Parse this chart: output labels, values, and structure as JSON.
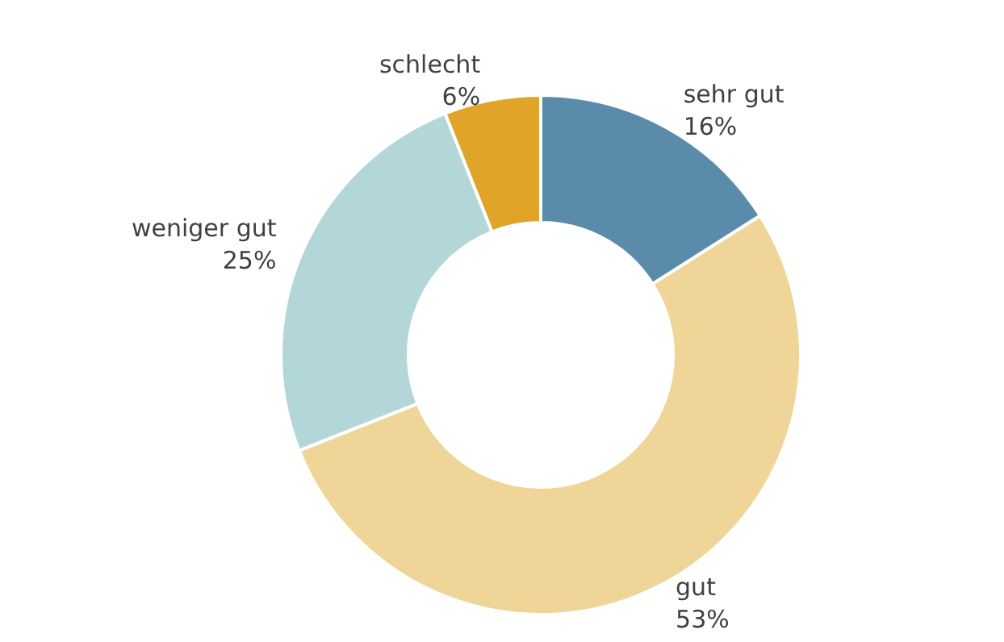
{
  "chart_data": {
    "type": "donut",
    "categories": [
      "sehr gut",
      "gut",
      "weniger gut",
      "schlecht"
    ],
    "values": [
      16,
      53,
      25,
      6
    ],
    "value_labels": [
      "16%",
      "53%",
      "25%",
      "6%"
    ],
    "colors": [
      "#5b8bab",
      "#efd597",
      "#b3d7d8",
      "#e0a528"
    ],
    "legend": false
  }
}
